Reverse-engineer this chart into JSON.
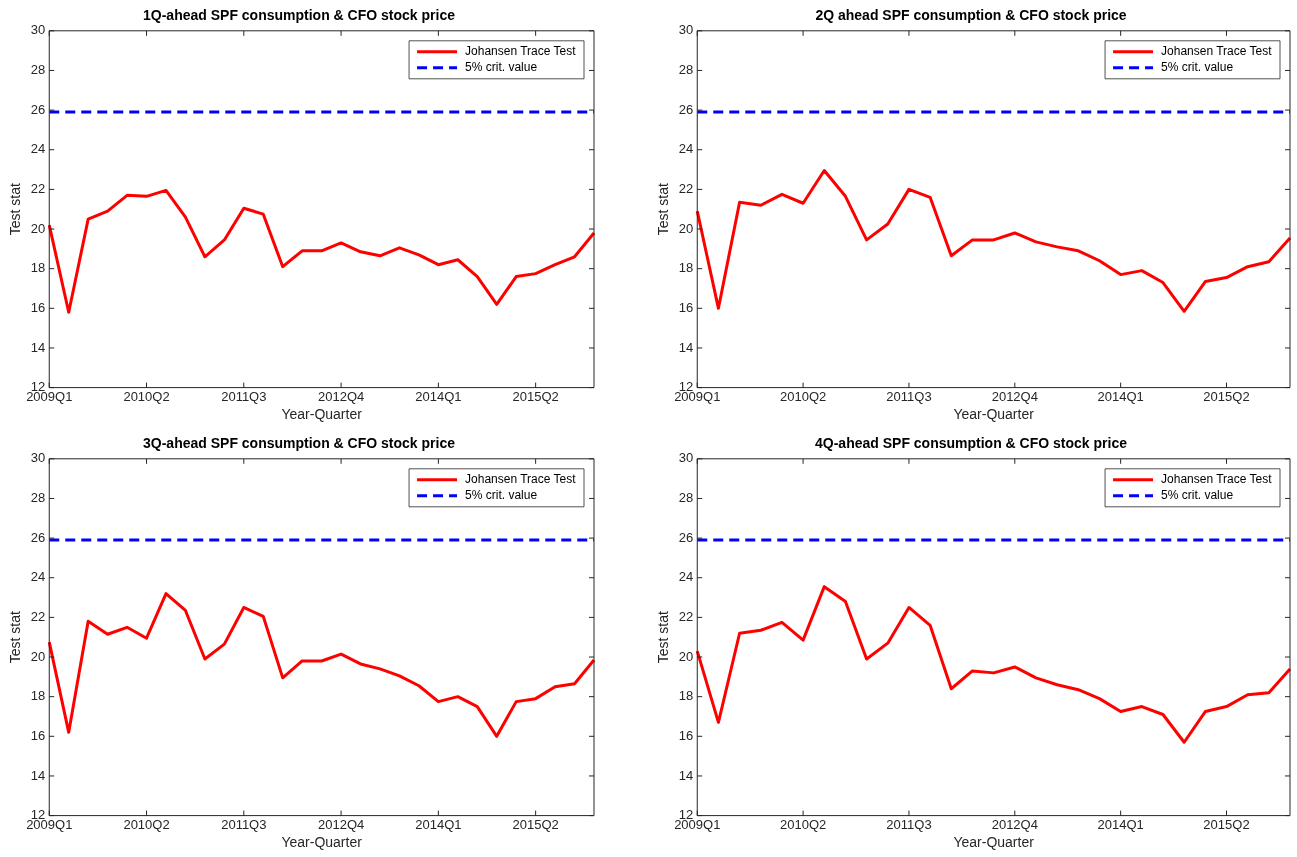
{
  "chart_data": [
    {
      "type": "line",
      "title": "1Q-ahead SPF consumption & CFO stock price",
      "xlabel": "Year-Quarter",
      "ylabel": "Test stat",
      "categories": [
        "2009Q1",
        null,
        null,
        null,
        null,
        "2010Q2",
        null,
        null,
        null,
        null,
        "2011Q3",
        null,
        null,
        null,
        null,
        "2012Q4",
        null,
        null,
        null,
        null,
        "2014Q1",
        null,
        null,
        null,
        null,
        "2015Q2",
        null,
        null,
        null
      ],
      "series": [
        {
          "name": "Johansen Trace Test",
          "color": "#ff0000",
          "values": [
            20.2,
            15.8,
            20.5,
            20.9,
            21.7,
            21.65,
            21.95,
            20.6,
            18.6,
            19.45,
            21.05,
            20.75,
            18.1,
            18.9,
            18.9,
            19.3,
            18.85,
            18.65,
            19.05,
            18.7,
            18.2,
            18.45,
            17.6,
            16.2,
            17.6,
            17.75,
            18.2,
            18.6,
            19.8
          ]
        },
        {
          "name": "5% crit. value",
          "color": "#0000ff",
          "line_style": "dashed",
          "values": [
            25.9,
            25.9,
            25.9,
            25.9,
            25.9,
            25.9,
            25.9,
            25.9,
            25.9,
            25.9,
            25.9,
            25.9,
            25.9,
            25.9,
            25.9,
            25.9,
            25.9,
            25.9,
            25.9,
            25.9,
            25.9,
            25.9,
            25.9,
            25.9,
            25.9,
            25.9,
            25.9,
            25.9,
            25.9
          ]
        }
      ],
      "ylim": [
        12,
        30
      ],
      "yticks": [
        12,
        14,
        16,
        18,
        20,
        22,
        24,
        26,
        28,
        30
      ],
      "legend": "top right",
      "grid": false
    },
    {
      "type": "line",
      "title": "2Q ahead SPF consumption & CFO stock price",
      "xlabel": "Year-Quarter",
      "ylabel": "Test stat",
      "categories": [
        "2009Q1",
        null,
        null,
        null,
        null,
        "2010Q2",
        null,
        null,
        null,
        null,
        "2011Q3",
        null,
        null,
        null,
        null,
        "2012Q4",
        null,
        null,
        null,
        null,
        "2014Q1",
        null,
        null,
        null,
        null,
        "2015Q2",
        null,
        null,
        null
      ],
      "series": [
        {
          "name": "Johansen Trace Test",
          "color": "#ff0000",
          "values": [
            20.9,
            16.0,
            21.35,
            21.2,
            21.75,
            21.3,
            22.95,
            21.65,
            19.45,
            20.25,
            22.0,
            21.6,
            18.65,
            19.45,
            19.45,
            19.8,
            19.35,
            19.1,
            18.9,
            18.4,
            17.7,
            17.9,
            17.3,
            15.85,
            17.35,
            17.55,
            18.1,
            18.35,
            19.55
          ]
        },
        {
          "name": "5% crit. value",
          "color": "#0000ff",
          "line_style": "dashed",
          "values": [
            25.9,
            25.9,
            25.9,
            25.9,
            25.9,
            25.9,
            25.9,
            25.9,
            25.9,
            25.9,
            25.9,
            25.9,
            25.9,
            25.9,
            25.9,
            25.9,
            25.9,
            25.9,
            25.9,
            25.9,
            25.9,
            25.9,
            25.9,
            25.9,
            25.9,
            25.9,
            25.9,
            25.9,
            25.9
          ]
        }
      ],
      "ylim": [
        12,
        30
      ],
      "yticks": [
        12,
        14,
        16,
        18,
        20,
        22,
        24,
        26,
        28,
        30
      ],
      "legend": "top right",
      "grid": false
    },
    {
      "type": "line",
      "title": "3Q-ahead SPF consumption & CFO stock price",
      "xlabel": "Year-Quarter",
      "ylabel": "Test stat",
      "categories": [
        "2009Q1",
        null,
        null,
        null,
        null,
        "2010Q2",
        null,
        null,
        null,
        null,
        "2011Q3",
        null,
        null,
        null,
        null,
        "2012Q4",
        null,
        null,
        null,
        null,
        "2014Q1",
        null,
        null,
        null,
        null,
        "2015Q2",
        null,
        null,
        null
      ],
      "series": [
        {
          "name": "Johansen Trace Test",
          "color": "#ff0000",
          "values": [
            20.75,
            16.2,
            21.8,
            21.15,
            21.5,
            20.95,
            23.2,
            22.35,
            19.9,
            20.65,
            22.5,
            22.05,
            18.95,
            19.8,
            19.8,
            20.15,
            19.65,
            19.4,
            19.05,
            18.55,
            17.75,
            18.0,
            17.5,
            16.0,
            17.75,
            17.9,
            18.5,
            18.65,
            19.85
          ]
        },
        {
          "name": "5% crit. value",
          "color": "#0000ff",
          "line_style": "dashed",
          "values": [
            25.9,
            25.9,
            25.9,
            25.9,
            25.9,
            25.9,
            25.9,
            25.9,
            25.9,
            25.9,
            25.9,
            25.9,
            25.9,
            25.9,
            25.9,
            25.9,
            25.9,
            25.9,
            25.9,
            25.9,
            25.9,
            25.9,
            25.9,
            25.9,
            25.9,
            25.9,
            25.9,
            25.9,
            25.9
          ]
        }
      ],
      "ylim": [
        12,
        30
      ],
      "yticks": [
        12,
        14,
        16,
        18,
        20,
        22,
        24,
        26,
        28,
        30
      ],
      "legend": "top right",
      "grid": false
    },
    {
      "type": "line",
      "title": "4Q-ahead SPF consumption & CFO stock price",
      "xlabel": "Year-Quarter",
      "ylabel": "Test stat",
      "categories": [
        "2009Q1",
        null,
        null,
        null,
        null,
        "2010Q2",
        null,
        null,
        null,
        null,
        "2011Q3",
        null,
        null,
        null,
        null,
        "2012Q4",
        null,
        null,
        null,
        null,
        "2014Q1",
        null,
        null,
        null,
        null,
        "2015Q2",
        null,
        null,
        null
      ],
      "series": [
        {
          "name": "Johansen Trace Test",
          "color": "#ff0000",
          "values": [
            20.3,
            16.7,
            21.2,
            21.35,
            21.75,
            20.85,
            23.55,
            22.8,
            19.9,
            20.7,
            22.5,
            21.6,
            18.4,
            19.3,
            19.2,
            19.5,
            18.95,
            18.6,
            18.35,
            17.9,
            17.25,
            17.5,
            17.1,
            15.7,
            17.25,
            17.5,
            18.1,
            18.2,
            19.4
          ]
        },
        {
          "name": "5% crit. value",
          "color": "#0000ff",
          "line_style": "dashed",
          "values": [
            25.9,
            25.9,
            25.9,
            25.9,
            25.9,
            25.9,
            25.9,
            25.9,
            25.9,
            25.9,
            25.9,
            25.9,
            25.9,
            25.9,
            25.9,
            25.9,
            25.9,
            25.9,
            25.9,
            25.9,
            25.9,
            25.9,
            25.9,
            25.9,
            25.9,
            25.9,
            25.9,
            25.9,
            25.9
          ]
        }
      ],
      "ylim": [
        12,
        30
      ],
      "yticks": [
        12,
        14,
        16,
        18,
        20,
        22,
        24,
        26,
        28,
        30
      ],
      "legend": "top right",
      "grid": false
    }
  ]
}
